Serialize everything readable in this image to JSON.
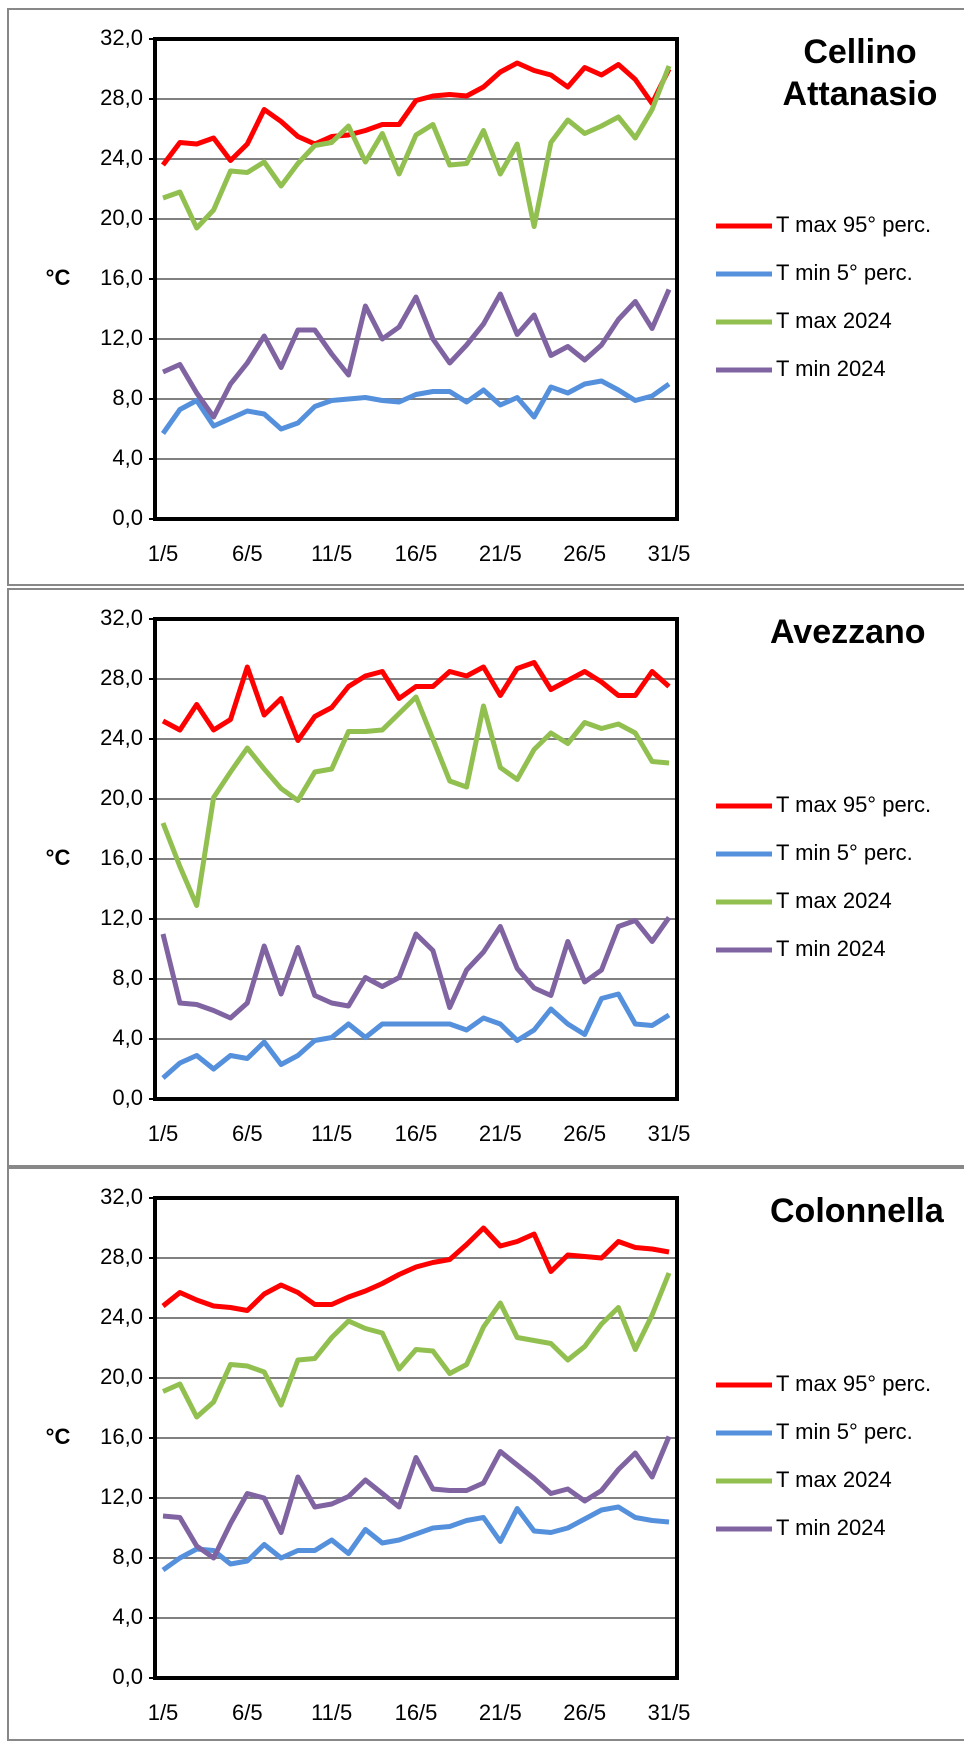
{
  "chart_data": [
    {
      "type": "line",
      "title": "Cellino Attanasio",
      "y_label": "°C",
      "categories": [
        "1/5",
        null,
        null,
        null,
        null,
        "6/5",
        null,
        null,
        null,
        null,
        "11/5",
        null,
        null,
        null,
        null,
        "16/5",
        null,
        null,
        null,
        null,
        "21/5",
        null,
        null,
        null,
        null,
        "26/5",
        null,
        null,
        null,
        null,
        "31/5"
      ],
      "ylim": [
        0,
        32
      ],
      "yticks": [
        {
          "value": 0,
          "label": "0,0"
        },
        {
          "value": 4,
          "label": "4,0"
        },
        {
          "value": 8,
          "label": "8,0"
        },
        {
          "value": 12,
          "label": "12,0"
        },
        {
          "value": 16,
          "label": "16,0"
        },
        {
          "value": 20,
          "label": "20,0"
        },
        {
          "value": 24,
          "label": "24,0"
        },
        {
          "value": 28,
          "label": "28,0"
        },
        {
          "value": 32,
          "label": "32,0"
        }
      ],
      "grid": true,
      "series": [
        {
          "name": "T max 95° perc.",
          "color": "#ff0000",
          "values": [
            23.6,
            25.1,
            25.0,
            25.4,
            23.9,
            25.0,
            27.3,
            26.5,
            25.5,
            25.0,
            25.5,
            25.6,
            25.9,
            26.3,
            26.3,
            27.9,
            28.2,
            28.3,
            28.2,
            28.8,
            29.8,
            30.4,
            29.9,
            29.6,
            28.8,
            30.1,
            29.6,
            30.3,
            29.3,
            27.7,
            30.0
          ]
        },
        {
          "name": "T min 5° perc.",
          "color": "#5590dc",
          "values": [
            5.7,
            7.3,
            7.9,
            6.2,
            6.7,
            7.2,
            7.0,
            6.0,
            6.4,
            7.5,
            7.9,
            8.0,
            8.1,
            7.9,
            7.8,
            8.3,
            8.5,
            8.5,
            7.8,
            8.6,
            7.6,
            8.1,
            6.8,
            8.8,
            8.4,
            9.0,
            9.2,
            8.6,
            7.9,
            8.2,
            9.0
          ]
        },
        {
          "name": "T max 2024",
          "color": "#92c050",
          "values": [
            21.4,
            21.8,
            19.4,
            20.6,
            23.2,
            23.1,
            23.8,
            22.2,
            23.7,
            24.9,
            25.1,
            26.2,
            23.8,
            25.7,
            23.0,
            25.6,
            26.3,
            23.6,
            23.7,
            25.9,
            23.0,
            25.0,
            19.5,
            25.1,
            26.6,
            25.7,
            26.2,
            26.8,
            25.4,
            27.3,
            30.2
          ]
        },
        {
          "name": "T min 2024",
          "color": "#8064a2",
          "values": [
            9.8,
            10.3,
            8.4,
            6.8,
            9.0,
            10.4,
            12.2,
            10.1,
            12.6,
            12.6,
            11.0,
            9.6,
            14.2,
            12.0,
            12.8,
            14.8,
            12.0,
            10.4,
            11.6,
            13.0,
            15.0,
            12.3,
            13.6,
            10.9,
            11.5,
            10.6,
            11.6,
            13.3,
            14.5,
            12.7,
            15.3
          ]
        }
      ]
    },
    {
      "type": "line",
      "title": "Avezzano",
      "y_label": "°C",
      "categories": [
        "1/5",
        null,
        null,
        null,
        null,
        "6/5",
        null,
        null,
        null,
        null,
        "11/5",
        null,
        null,
        null,
        null,
        "16/5",
        null,
        null,
        null,
        null,
        "21/5",
        null,
        null,
        null,
        null,
        "26/5",
        null,
        null,
        null,
        null,
        "31/5"
      ],
      "ylim": [
        0,
        32
      ],
      "yticks": [
        {
          "value": 0,
          "label": "0,0"
        },
        {
          "value": 4,
          "label": "4,0"
        },
        {
          "value": 8,
          "label": "8,0"
        },
        {
          "value": 12,
          "label": "12,0"
        },
        {
          "value": 16,
          "label": "16,0"
        },
        {
          "value": 20,
          "label": "20,0"
        },
        {
          "value": 24,
          "label": "24,0"
        },
        {
          "value": 28,
          "label": "28,0"
        },
        {
          "value": 32,
          "label": "32,0"
        }
      ],
      "grid": true,
      "series": [
        {
          "name": "T max 95° perc.",
          "color": "#ff0000",
          "values": [
            25.2,
            24.6,
            26.3,
            24.6,
            25.3,
            28.8,
            25.6,
            26.7,
            23.9,
            25.5,
            26.1,
            27.5,
            28.2,
            28.5,
            26.7,
            27.5,
            27.5,
            28.5,
            28.2,
            28.8,
            26.9,
            28.7,
            29.1,
            27.3,
            27.9,
            28.5,
            27.8,
            26.9,
            26.9,
            28.5,
            27.5
          ]
        },
        {
          "name": "T min 5° perc.",
          "color": "#5590dc",
          "values": [
            1.4,
            2.4,
            2.9,
            2.0,
            2.9,
            2.7,
            3.8,
            2.3,
            2.9,
            3.9,
            4.1,
            5.0,
            4.1,
            5.0,
            5.0,
            5.0,
            5.0,
            5.0,
            4.6,
            5.4,
            5.0,
            3.9,
            4.6,
            6.0,
            5.0,
            4.3,
            6.7,
            7.0,
            5.0,
            4.9,
            5.6
          ]
        },
        {
          "name": "T max 2024",
          "color": "#92c050",
          "values": [
            18.4,
            15.5,
            12.9,
            20.1,
            21.8,
            23.4,
            22.0,
            20.7,
            19.9,
            21.8,
            22.0,
            24.5,
            24.5,
            24.6,
            25.7,
            26.8,
            24.0,
            21.2,
            20.8,
            26.2,
            22.1,
            21.3,
            23.3,
            24.4,
            23.7,
            25.1,
            24.7,
            25.0,
            24.4,
            22.5,
            22.4
          ]
        },
        {
          "name": "T min 2024",
          "color": "#8064a2",
          "values": [
            11.0,
            6.4,
            6.3,
            5.9,
            5.4,
            6.4,
            10.2,
            7.0,
            10.1,
            6.9,
            6.4,
            6.2,
            8.1,
            7.5,
            8.1,
            11.0,
            9.9,
            6.1,
            8.6,
            9.8,
            11.5,
            8.7,
            7.4,
            6.9,
            10.5,
            7.8,
            8.6,
            11.5,
            11.9,
            10.5,
            12.1
          ]
        }
      ]
    },
    {
      "type": "line",
      "title": "Colonnella",
      "y_label": "°C",
      "categories": [
        "1/5",
        null,
        null,
        null,
        null,
        "6/5",
        null,
        null,
        null,
        null,
        "11/5",
        null,
        null,
        null,
        null,
        "16/5",
        null,
        null,
        null,
        null,
        "21/5",
        null,
        null,
        null,
        null,
        "26/5",
        null,
        null,
        null,
        null,
        "31/5"
      ],
      "ylim": [
        0,
        32
      ],
      "yticks": [
        {
          "value": 0,
          "label": "0,0"
        },
        {
          "value": 4,
          "label": "4,0"
        },
        {
          "value": 8,
          "label": "8,0"
        },
        {
          "value": 12,
          "label": "12,0"
        },
        {
          "value": 16,
          "label": "16,0"
        },
        {
          "value": 20,
          "label": "20,0"
        },
        {
          "value": 24,
          "label": "24,0"
        },
        {
          "value": 28,
          "label": "28,0"
        },
        {
          "value": 32,
          "label": "32,0"
        }
      ],
      "grid": true,
      "series": [
        {
          "name": "T max 95° perc.",
          "color": "#ff0000",
          "values": [
            24.8,
            25.7,
            25.2,
            24.8,
            24.7,
            24.5,
            25.6,
            26.2,
            25.7,
            24.9,
            24.9,
            25.4,
            25.8,
            26.3,
            26.9,
            27.4,
            27.7,
            27.9,
            28.9,
            30.0,
            28.8,
            29.1,
            29.6,
            27.1,
            28.2,
            28.1,
            28.0,
            29.1,
            28.7,
            28.6,
            28.4
          ]
        },
        {
          "name": "T min 5° perc.",
          "color": "#5590dc",
          "values": [
            7.2,
            8.0,
            8.6,
            8.5,
            7.6,
            7.8,
            8.9,
            8.0,
            8.5,
            8.5,
            9.2,
            8.3,
            9.9,
            9.0,
            9.2,
            9.6,
            10.0,
            10.1,
            10.5,
            10.7,
            9.1,
            11.3,
            9.8,
            9.7,
            10.0,
            10.6,
            11.2,
            11.4,
            10.7,
            10.5,
            10.4
          ]
        },
        {
          "name": "T max 2024",
          "color": "#92c050",
          "values": [
            19.1,
            19.6,
            17.4,
            18.4,
            20.9,
            20.8,
            20.4,
            18.2,
            21.2,
            21.3,
            22.7,
            23.8,
            23.3,
            23.0,
            20.6,
            21.9,
            21.8,
            20.3,
            20.9,
            23.4,
            25.0,
            22.7,
            22.5,
            22.3,
            21.2,
            22.1,
            23.6,
            24.7,
            21.9,
            24.2,
            27.0
          ]
        },
        {
          "name": "T min 2024",
          "color": "#8064a2",
          "values": [
            10.8,
            10.7,
            8.8,
            8.0,
            10.3,
            12.3,
            12.0,
            9.7,
            13.4,
            11.4,
            11.6,
            12.1,
            13.2,
            12.3,
            11.4,
            14.7,
            12.6,
            12.5,
            12.5,
            13.0,
            15.1,
            14.2,
            13.3,
            12.3,
            12.6,
            11.8,
            12.5,
            13.9,
            15.0,
            13.4,
            16.1
          ]
        }
      ]
    }
  ]
}
